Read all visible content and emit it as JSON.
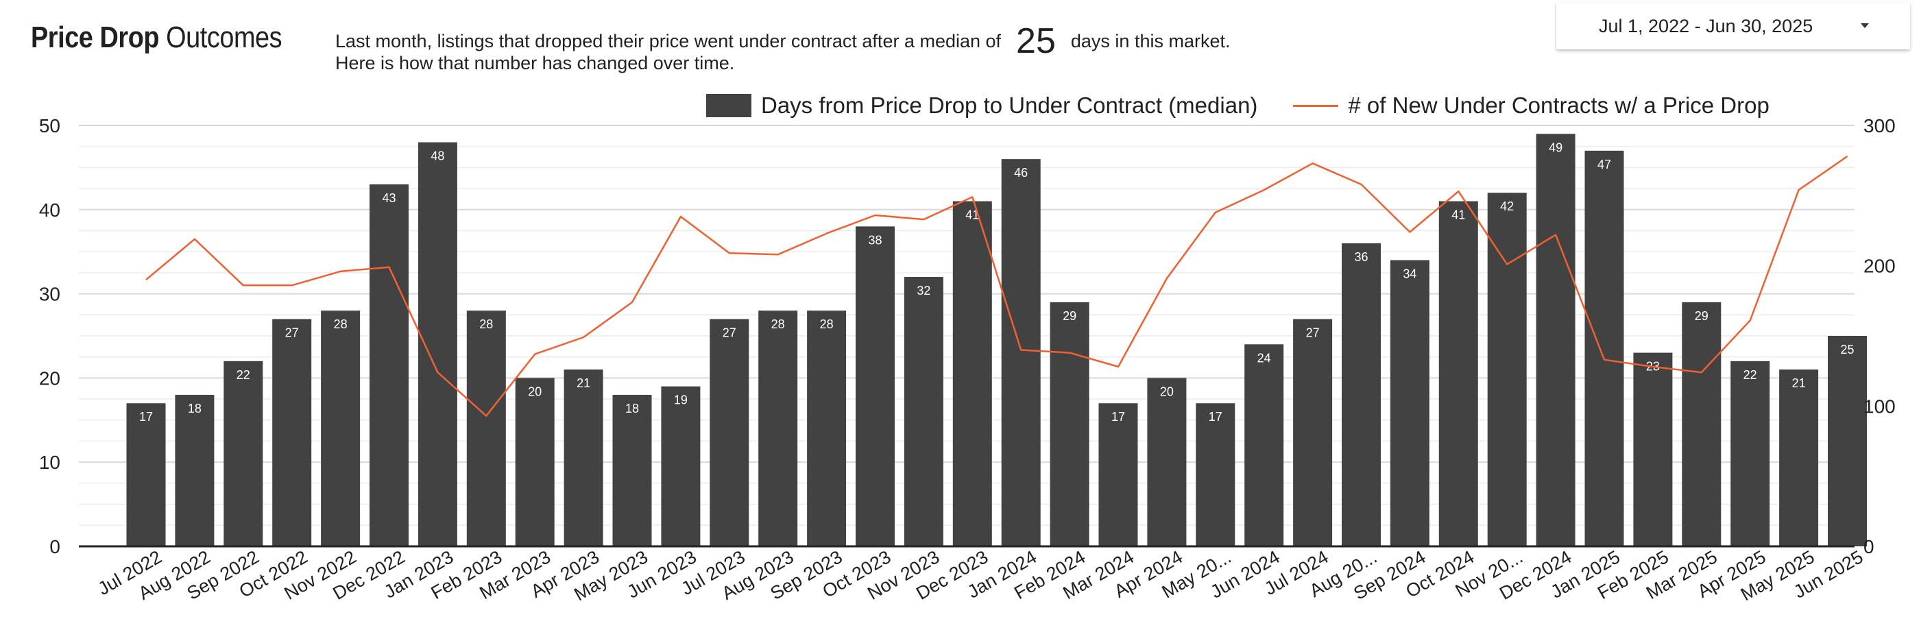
{
  "header": {
    "title_bold": "Price Drop",
    "title_light": "Outcomes",
    "subtitle_before": "Last month,  listings that dropped their price went under contract after a median of",
    "subtitle_value": "25",
    "subtitle_after": "days in this market.",
    "subtitle_line2": "Here is how that number has changed over time."
  },
  "date_range": {
    "label": "Jul 1, 2022 - Jun 30, 2025",
    "caret_icon": "caret-down-icon"
  },
  "colors": {
    "bar": "#424242",
    "line": "#f06030",
    "grid": "#e3e3e3",
    "bar_label": "#ffffff"
  },
  "chart_data": {
    "type": "bar",
    "categories": [
      "Jul 2022",
      "Aug 2022",
      "Sep 2022",
      "Oct 2022",
      "Nov 2022",
      "Dec 2022",
      "Jan 2023",
      "Feb 2023",
      "Mar 2023",
      "Apr 2023",
      "May 2023",
      "Jun 2023",
      "Jul 2023",
      "Aug 2023",
      "Sep 2023",
      "Oct 2023",
      "Nov 2023",
      "Dec 2023",
      "Jan 2024",
      "Feb 2024",
      "Mar 2024",
      "Apr 2024",
      "May 20...",
      "Jun 2024",
      "Jul 2024",
      "Aug 20...",
      "Sep 2024",
      "Oct 2024",
      "Nov 20...",
      "Dec 2024",
      "Jan 2025",
      "Feb 2025",
      "Mar 2025",
      "Apr 2025",
      "May 2025",
      "Jun 2025"
    ],
    "series": [
      {
        "name": "Days from Price Drop to Under Contract (median)",
        "type": "bar",
        "axis": "left",
        "values": [
          17,
          18,
          22,
          27,
          28,
          43,
          48,
          28,
          20,
          21,
          18,
          19,
          27,
          28,
          28,
          38,
          32,
          41,
          46,
          29,
          17,
          20,
          17,
          24,
          27,
          36,
          34,
          41,
          42,
          49,
          47,
          23,
          29,
          22,
          21,
          25
        ]
      },
      {
        "name": "# of New Under Contracts w/ a Price Drop",
        "type": "line",
        "axis": "right",
        "values": [
          190,
          219,
          186,
          186,
          196,
          199,
          124,
          93,
          137,
          149,
          174,
          235,
          209,
          208,
          223,
          236,
          233,
          249,
          140,
          138,
          128,
          191,
          238,
          254,
          273,
          258,
          224,
          253,
          201,
          222,
          133,
          128,
          124,
          161,
          254,
          278
        ]
      }
    ],
    "y_left": {
      "min": 0,
      "max": 50,
      "ticks": [
        0,
        10,
        20,
        30,
        40,
        50
      ]
    },
    "y_right": {
      "min": 0,
      "max": 300,
      "ticks": [
        0,
        100,
        200,
        300
      ]
    },
    "grid": true,
    "legend_position": "top-right"
  }
}
